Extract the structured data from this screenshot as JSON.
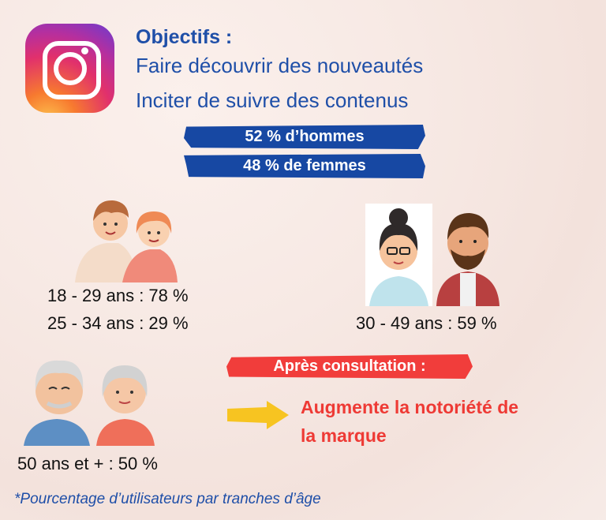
{
  "objectives": {
    "title": "Objectifs :",
    "line1": "Faire découvrir des nouveautés",
    "line2": "Inciter de suivre des contenus"
  },
  "gender": {
    "men": "52 % d’hommes",
    "women": "48 % de femmes"
  },
  "ages": {
    "group1_line1": "18 - 29  ans : 78 %",
    "group1_line2": "25 - 34 ans : 29 %",
    "group2": "30 - 49  ans : 59 %",
    "group3": "50 ans et + : 50 %"
  },
  "after": {
    "label": "Après consultation :",
    "result_line1": "Augmente la notoriété de",
    "result_line2": "la marque"
  },
  "footnote": "*Pourcentage d’utilisateurs par tranches d’âge",
  "icons": {
    "logo": "instagram-icon",
    "arrow": "arrow-right-icon"
  },
  "colors": {
    "blue": "#1f4fa8",
    "navy_stroke": "#1748a3",
    "red": "#ee3a35",
    "arrow_yellow": "#f7c421"
  }
}
